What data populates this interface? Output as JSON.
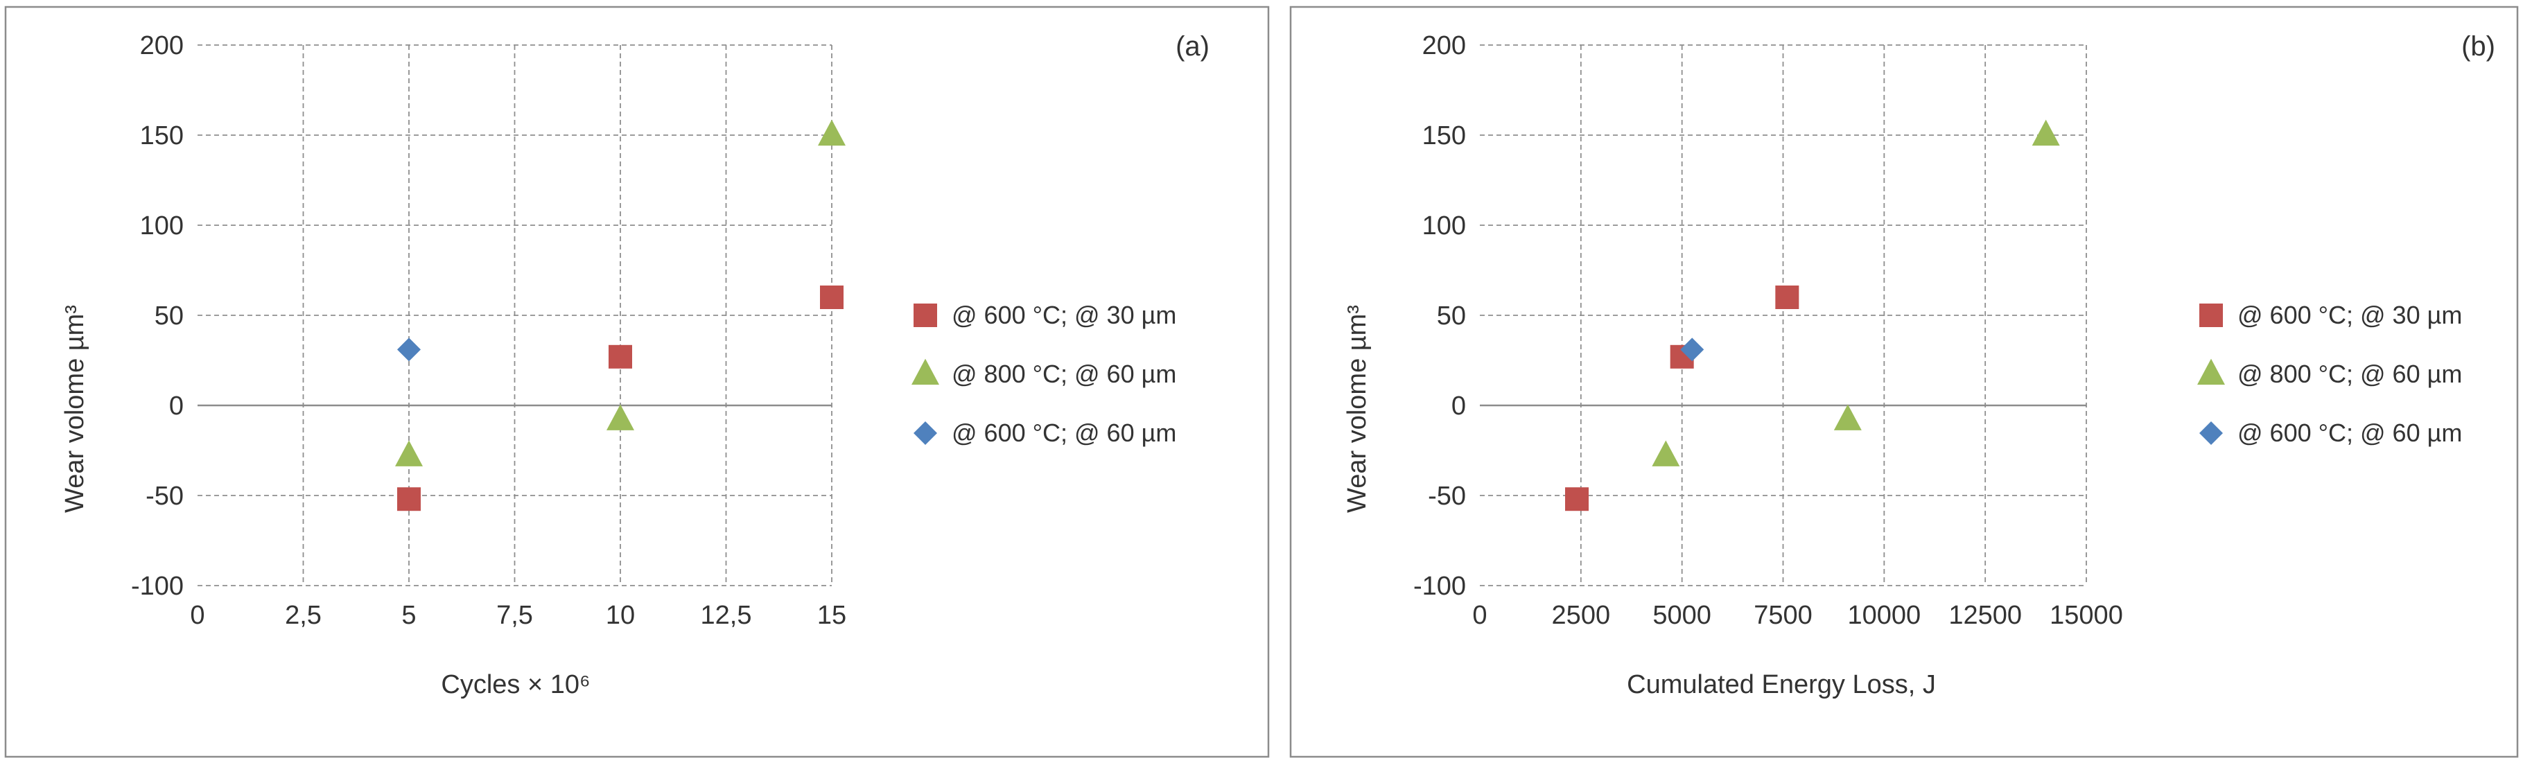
{
  "chart_data": [
    {
      "type": "scatter",
      "panel_label": "(a)",
      "xlabel": "Cycles × 10⁶",
      "ylabel": "Wear volome µm³",
      "xlim": [
        0,
        15
      ],
      "ylim": [
        -100,
        200
      ],
      "x_ticks": [
        0,
        2.5,
        5,
        7.5,
        10,
        12.5,
        15
      ],
      "x_tick_labels": [
        "0",
        "2,5",
        "5",
        "7,5",
        "10",
        "12,5",
        "15"
      ],
      "y_ticks": [
        -100,
        -50,
        0,
        50,
        100,
        150,
        200
      ],
      "y_tick_labels": [
        "-100",
        "-50",
        "0",
        "50",
        "100",
        "150",
        "200"
      ],
      "grid": true,
      "legend_position": "right",
      "series": [
        {
          "name": "@ 600 °C; @ 30 µm",
          "marker": "square",
          "color": "#c0504d",
          "points": [
            [
              5,
              -52
            ],
            [
              10,
              27
            ],
            [
              15,
              60
            ]
          ]
        },
        {
          "name": "@ 800 °C; @ 60 µm",
          "marker": "triangle",
          "color": "#9bbb59",
          "points": [
            [
              5,
              -28
            ],
            [
              10,
              -8
            ],
            [
              15,
              150
            ]
          ]
        },
        {
          "name": "@ 600 °C; @ 60 µm",
          "marker": "diamond",
          "color": "#4f81bd",
          "points": [
            [
              5,
              31
            ]
          ]
        }
      ]
    },
    {
      "type": "scatter",
      "panel_label": "(b)",
      "xlabel": "Cumulated Energy Loss, J",
      "ylabel": "Wear volome µm³",
      "xlim": [
        0,
        15000
      ],
      "ylim": [
        -100,
        200
      ],
      "x_ticks": [
        0,
        2500,
        5000,
        7500,
        10000,
        12500,
        15000
      ],
      "x_tick_labels": [
        "0",
        "2500",
        "5000",
        "7500",
        "10000",
        "12500",
        "15000"
      ],
      "y_ticks": [
        -100,
        -50,
        0,
        50,
        100,
        150,
        200
      ],
      "y_tick_labels": [
        "-100",
        "-50",
        "0",
        "50",
        "100",
        "150",
        "200"
      ],
      "grid": true,
      "legend_position": "right",
      "series": [
        {
          "name": "@ 600 °C; @ 30 µm",
          "marker": "square",
          "color": "#c0504d",
          "points": [
            [
              2400,
              -52
            ],
            [
              5000,
              27
            ],
            [
              7600,
              60
            ]
          ]
        },
        {
          "name": "@ 800 °C; @ 60 µm",
          "marker": "triangle",
          "color": "#9bbb59",
          "points": [
            [
              4600,
              -28
            ],
            [
              9100,
              -8
            ],
            [
              14000,
              150
            ]
          ]
        },
        {
          "name": "@ 600 °C; @ 60 µm",
          "marker": "diamond",
          "color": "#4f81bd",
          "points": [
            [
              5250,
              31
            ]
          ]
        }
      ]
    }
  ]
}
